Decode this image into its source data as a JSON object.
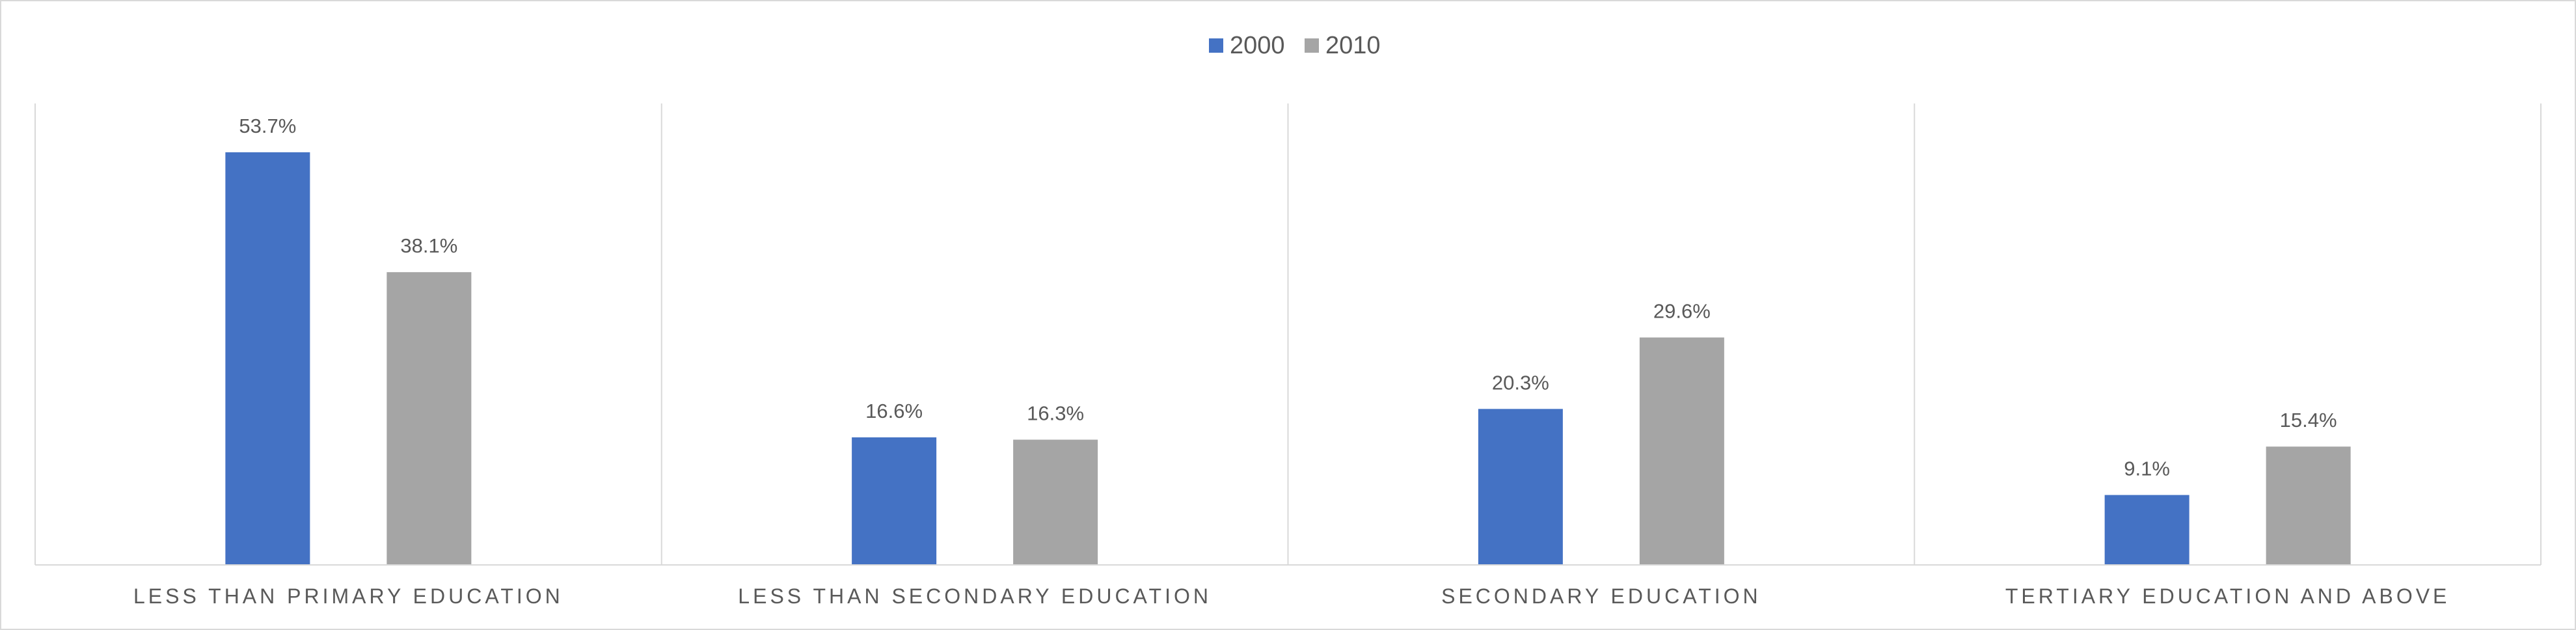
{
  "chart_data": {
    "type": "bar",
    "title": "",
    "xlabel": "",
    "ylabel": "",
    "categories": [
      "LESS THAN PRIMARY EDUCATION",
      "LESS THAN SECONDARY EDUCATION",
      "SECONDARY EDUCATION",
      "TERTIARY EDUCATION AND ABOVE"
    ],
    "series": [
      {
        "name": "2000",
        "color": "#4472C4",
        "values": [
          53.7,
          16.6,
          20.3,
          9.1
        ],
        "labels": [
          "53.7%",
          "16.6%",
          "20.3%",
          "9.1%"
        ]
      },
      {
        "name": "2010",
        "color": "#A5A5A5",
        "values": [
          38.1,
          16.3,
          29.6,
          15.4
        ],
        "labels": [
          "38.1%",
          "16.3%",
          "29.6%",
          "15.4%"
        ]
      }
    ],
    "ylim": [
      0,
      60
    ],
    "grid": false,
    "legend": "top-center",
    "axis_color": "#d9d9d9",
    "text_color": "#595959"
  }
}
